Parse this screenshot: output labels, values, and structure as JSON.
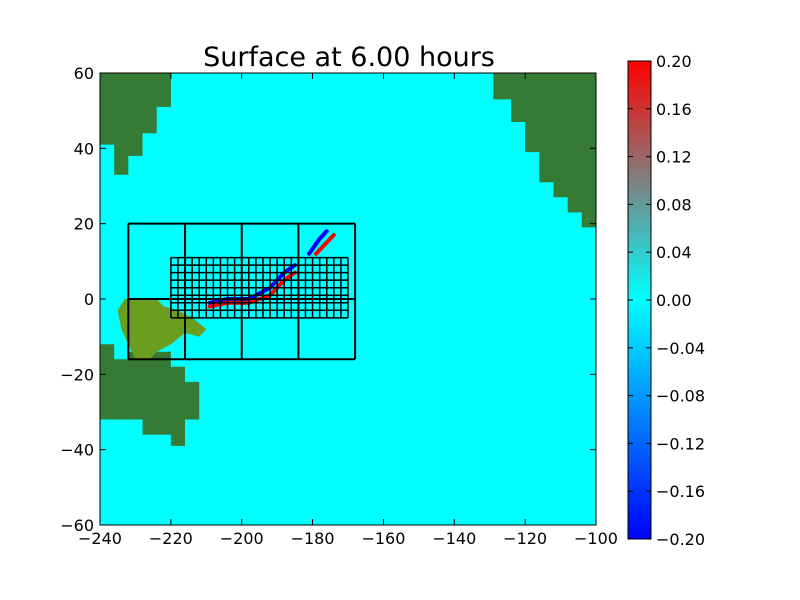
{
  "chart_data": {
    "type": "heatmap",
    "title": "Surface at 6.00 hours",
    "xlabel": "",
    "ylabel": "",
    "xlim": [
      -240,
      -100
    ],
    "ylim": [
      -60,
      60
    ],
    "x_ticks": [
      -240,
      -220,
      -200,
      -180,
      -160,
      -140,
      -120,
      -100
    ],
    "y_ticks": [
      -60,
      -40,
      -20,
      0,
      20,
      40,
      60
    ],
    "x_tick_labels": [
      "−240",
      "−220",
      "−200",
      "−180",
      "−160",
      "−140",
      "−120",
      "−100"
    ],
    "y_tick_labels": [
      "−60",
      "−40",
      "−20",
      "0",
      "20",
      "40",
      "60"
    ],
    "colorbar": {
      "range": [
        -0.2,
        0.2
      ],
      "ticks": [
        0.2,
        0.16,
        0.12,
        0.08,
        0.04,
        0.0,
        -0.04,
        -0.08,
        -0.12,
        -0.16,
        -0.2
      ],
      "tick_labels": [
        "0.20",
        "0.16",
        "0.12",
        "0.08",
        "0.04",
        "0.00",
        "−0.04",
        "−0.08",
        "−0.12",
        "−0.16",
        "−0.20"
      ],
      "colors": [
        "#0000ff",
        "#00ffff",
        "#808080",
        "#ff0000"
      ]
    },
    "colors": {
      "water": "#00ffff",
      "land": "#357a35",
      "land_light": "#6b9e1f",
      "grid_lines": "#000000"
    },
    "land_regions": [
      {
        "name": "north-america",
        "polygon": [
          [
            -129,
            60
          ],
          [
            -100,
            60
          ],
          [
            -100,
            19
          ],
          [
            -104,
            19
          ],
          [
            -104,
            23
          ],
          [
            -108,
            23
          ],
          [
            -108,
            27
          ],
          [
            -112,
            27
          ],
          [
            -112,
            31
          ],
          [
            -116,
            31
          ],
          [
            -116,
            39
          ],
          [
            -120,
            39
          ],
          [
            -120,
            47
          ],
          [
            -124,
            47
          ],
          [
            -124,
            53
          ],
          [
            -129,
            53
          ]
        ]
      },
      {
        "name": "asia",
        "polygon": [
          [
            -240,
            60
          ],
          [
            -220,
            60
          ],
          [
            -220,
            51
          ],
          [
            -224,
            51
          ],
          [
            -224,
            44
          ],
          [
            -228,
            44
          ],
          [
            -228,
            38
          ],
          [
            -232,
            38
          ],
          [
            -232,
            33
          ],
          [
            -236,
            33
          ],
          [
            -236,
            41
          ],
          [
            -240,
            41
          ]
        ]
      },
      {
        "name": "australia",
        "polygon": [
          [
            -240,
            -12
          ],
          [
            -236,
            -12
          ],
          [
            -236,
            -16
          ],
          [
            -232,
            -16
          ],
          [
            -232,
            -14
          ],
          [
            -220,
            -14
          ],
          [
            -220,
            -18
          ],
          [
            -216,
            -18
          ],
          [
            -216,
            -22
          ],
          [
            -212,
            -22
          ],
          [
            -212,
            -32
          ],
          [
            -216,
            -32
          ],
          [
            -216,
            -39
          ],
          [
            -220,
            -39
          ],
          [
            -220,
            -36
          ],
          [
            -228,
            -36
          ],
          [
            -228,
            -32
          ],
          [
            -240,
            -32
          ]
        ]
      },
      {
        "name": "maritime-continent",
        "polygon": [
          [
            -233,
            0
          ],
          [
            -224,
            0
          ],
          [
            -222,
            -2
          ],
          [
            -218,
            -3
          ],
          [
            -214,
            -5
          ],
          [
            -210,
            -8
          ],
          [
            -212,
            -10
          ],
          [
            -216,
            -9
          ],
          [
            -220,
            -12
          ],
          [
            -224,
            -14
          ],
          [
            -226,
            -16
          ],
          [
            -230,
            -16
          ],
          [
            -232,
            -12
          ],
          [
            -234,
            -8
          ],
          [
            -235,
            -3
          ]
        ]
      }
    ],
    "coarse_grid": {
      "x": [
        -232,
        -216,
        -200,
        -184,
        -168
      ],
      "y": [
        20,
        0,
        -16
      ]
    },
    "fine_grid": {
      "x": [
        -220,
        -218,
        -216,
        -214,
        -212,
        -210,
        -208,
        -206,
        -204,
        -202,
        -200,
        -198,
        -196,
        -194,
        -192,
        -190,
        -188,
        -186,
        -184,
        -182,
        -180,
        -178,
        -176,
        -174,
        -172,
        -170
      ],
      "y": [
        11,
        9,
        7,
        5,
        3,
        1,
        -1,
        -3,
        -5
      ]
    },
    "wave_front": {
      "blue": [
        [
          -209,
          -1
        ],
        [
          -204,
          0
        ],
        [
          -198,
          0
        ],
        [
          -192,
          3
        ],
        [
          -188,
          7
        ],
        [
          -185,
          9
        ]
      ],
      "red": [
        [
          -209,
          -2
        ],
        [
          -204,
          -1
        ],
        [
          -198,
          -1
        ],
        [
          -192,
          1
        ],
        [
          -188,
          5
        ],
        [
          -185,
          7
        ]
      ],
      "blue_upper": [
        [
          -181,
          12
        ],
        [
          -178,
          16
        ],
        [
          -176,
          18
        ]
      ],
      "red_upper": [
        [
          -179,
          12
        ],
        [
          -176,
          15
        ],
        [
          -174,
          17
        ]
      ]
    }
  }
}
